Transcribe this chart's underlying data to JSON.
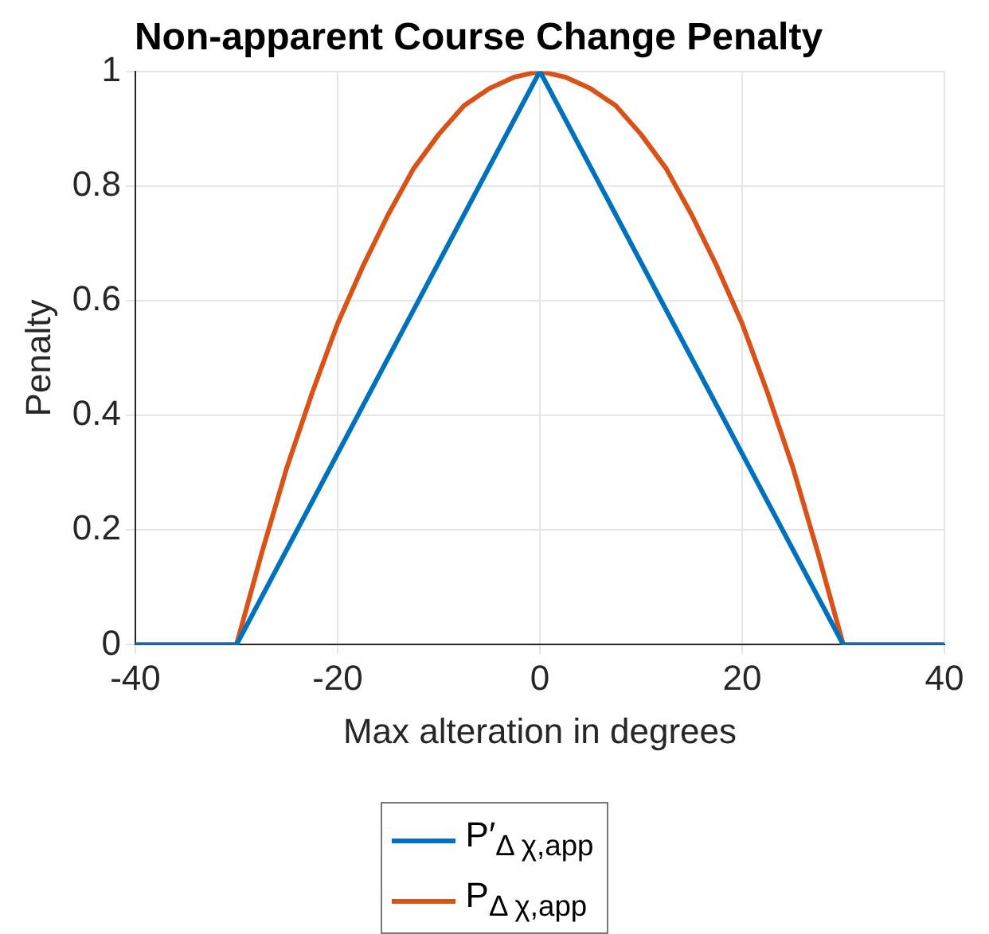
{
  "chart_data": {
    "type": "line",
    "title": "Non-apparent Course Change Penalty",
    "xlabel": "Max alteration in degrees",
    "ylabel": "Penalty",
    "series": [
      {
        "name": "P′$_{Δ χ,app}$",
        "color": "#0072bd",
        "x": [
          -40,
          -30,
          0,
          30,
          40
        ],
        "values": [
          0,
          0,
          1,
          0,
          0
        ]
      },
      {
        "name": "P$_{Δ χ,app}$",
        "color": "#d95319",
        "x": [
          -40,
          -30,
          -27.5,
          -25,
          -22.5,
          -20,
          -17.5,
          -15,
          -12.5,
          -10,
          -7.5,
          -5,
          -2.5,
          0,
          2.5,
          5,
          7.5,
          10,
          12.5,
          15,
          17.5,
          20,
          22.5,
          25,
          27.5,
          30,
          40
        ],
        "values": [
          0,
          0,
          0.16,
          0.31,
          0.44,
          0.56,
          0.66,
          0.75,
          0.83,
          0.89,
          0.94,
          0.97,
          0.99,
          1,
          0.99,
          0.97,
          0.94,
          0.89,
          0.83,
          0.75,
          0.66,
          0.56,
          0.44,
          0.31,
          0.16,
          0,
          0
        ]
      }
    ],
    "xlim": [
      -40,
      40
    ],
    "xticks": [
      -40,
      -20,
      0,
      20,
      40
    ],
    "ylim": [
      0,
      1
    ],
    "yticks": [
      0,
      0.2,
      0.4,
      0.6,
      0.8,
      1
    ],
    "grid": true,
    "legend": "bottom",
    "marker": "none",
    "line_style": "solid"
  }
}
